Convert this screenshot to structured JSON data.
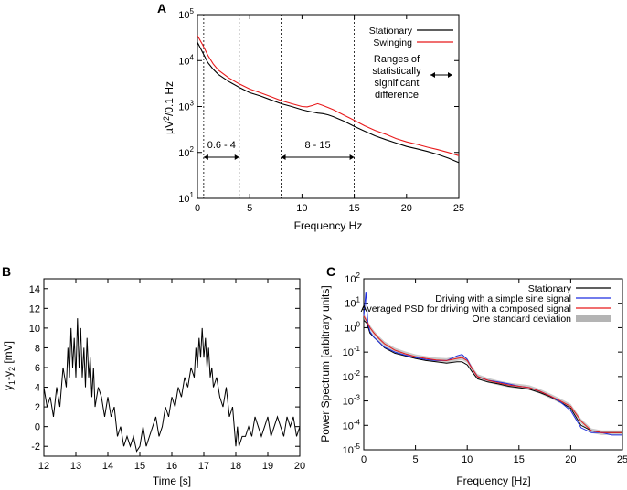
{
  "chart_data": [
    {
      "panel": "A",
      "type": "line",
      "xlabel": "Frequency Hz",
      "ylabel": "µV²/0.1 Hz",
      "xlim": [
        0,
        25
      ],
      "ylim": [
        10,
        100000
      ],
      "yscale": "log",
      "xticks": [
        "0",
        "5",
        "10",
        "15",
        "20",
        "25"
      ],
      "yticks": [
        {
          "base": "10",
          "exp": "1"
        },
        {
          "base": "10",
          "exp": "2"
        },
        {
          "base": "10",
          "exp": "3"
        },
        {
          "base": "10",
          "exp": "4"
        },
        {
          "base": "10",
          "exp": "5"
        }
      ],
      "series": [
        {
          "name": "Stationary",
          "color": "#000000",
          "x": [
            0,
            0.5,
            1,
            1.5,
            2,
            3,
            4,
            5,
            6,
            7,
            8,
            9,
            10,
            10.5,
            11,
            11.5,
            12,
            12.5,
            13,
            14,
            15,
            16,
            17,
            18,
            19,
            20,
            21,
            22,
            23,
            24,
            25
          ],
          "y": [
            25000,
            15000,
            9000,
            6500,
            5000,
            3500,
            2600,
            2000,
            1700,
            1400,
            1150,
            1000,
            850,
            800,
            760,
            720,
            700,
            660,
            600,
            480,
            370,
            290,
            230,
            190,
            160,
            135,
            120,
            105,
            90,
            75,
            60
          ]
        },
        {
          "name": "Swinging",
          "color": "#e8191b",
          "x": [
            0,
            0.5,
            1,
            1.5,
            2,
            3,
            4,
            5,
            6,
            7,
            8,
            9,
            10,
            10.5,
            11,
            11.5,
            12,
            12.5,
            13,
            14,
            15,
            16,
            17,
            18,
            19,
            20,
            21,
            22,
            23,
            24,
            25
          ],
          "y": [
            35000,
            22000,
            13000,
            8500,
            6200,
            4200,
            3100,
            2400,
            2000,
            1650,
            1350,
            1150,
            1000,
            980,
            1050,
            1150,
            1050,
            950,
            850,
            650,
            500,
            380,
            300,
            250,
            200,
            170,
            150,
            130,
            115,
            100,
            85
          ]
        }
      ],
      "vlines": [
        0.6,
        4,
        8,
        15
      ],
      "ranges": [
        {
          "from": 0.6,
          "to": 4,
          "label": "0.6 - 4"
        },
        {
          "from": 8,
          "to": 15,
          "label": "8 - 15"
        }
      ],
      "annotation": [
        "Ranges of",
        "statistically",
        "significant",
        "difference"
      ]
    },
    {
      "panel": "B",
      "type": "line",
      "xlabel": "Time [s]",
      "ylabel": "y1-y2 [mV]",
      "ylabel_parts": [
        "y",
        "1",
        "-y",
        "2",
        " [mV]"
      ],
      "xlim": [
        12,
        20
      ],
      "ylim": [
        -3,
        15
      ],
      "xticks": [
        "12",
        "13",
        "14",
        "15",
        "16",
        "17",
        "18",
        "19",
        "20"
      ],
      "yticks": [
        "-2",
        "0",
        "2",
        "4",
        "6",
        "8",
        "10",
        "12",
        "14"
      ],
      "series": [
        {
          "name": "y1-y2",
          "color": "#000000",
          "x": [
            12,
            12.1,
            12.2,
            12.3,
            12.4,
            12.5,
            12.6,
            12.7,
            12.75,
            12.8,
            12.85,
            12.9,
            12.95,
            13,
            13.05,
            13.1,
            13.15,
            13.2,
            13.25,
            13.3,
            13.35,
            13.4,
            13.45,
            13.5,
            13.55,
            13.6,
            13.7,
            13.8,
            13.9,
            14,
            14.1,
            14.2,
            14.3,
            14.4,
            14.5,
            14.6,
            14.7,
            14.8,
            14.9,
            15,
            15.1,
            15.2,
            15.3,
            15.4,
            15.5,
            15.6,
            15.7,
            15.8,
            15.9,
            16,
            16.1,
            16.2,
            16.3,
            16.4,
            16.5,
            16.6,
            16.7,
            16.75,
            16.8,
            16.85,
            16.9,
            16.95,
            17,
            17.05,
            17.1,
            17.15,
            17.2,
            17.25,
            17.3,
            17.4,
            17.5,
            17.6,
            17.7,
            17.8,
            17.9,
            18,
            18.05,
            18.1,
            18.2,
            18.3,
            18.4,
            18.5,
            18.6,
            18.7,
            18.8,
            18.9,
            19,
            19.1,
            19.2,
            19.3,
            19.4,
            19.5,
            19.6,
            19.7,
            19.8,
            19.9,
            20
          ],
          "y": [
            4,
            2,
            3,
            1,
            4,
            2,
            6,
            4,
            8,
            5,
            10,
            6,
            9,
            5,
            11,
            6,
            10,
            5,
            8,
            4,
            9,
            5,
            7,
            3,
            6,
            2,
            4,
            3,
            1,
            3,
            1,
            2,
            -1,
            0,
            -2,
            -1,
            -2,
            -1,
            -2.5,
            -2,
            0,
            -2,
            -1,
            0,
            1,
            -1,
            0,
            2,
            1,
            3,
            2,
            4,
            3,
            5,
            4,
            6,
            5,
            8,
            6,
            9,
            7,
            10,
            7,
            9,
            6,
            8,
            5,
            6,
            4,
            5,
            3,
            2,
            4,
            1,
            2,
            -2,
            0,
            -2,
            -1,
            -1,
            0,
            -1,
            1,
            0,
            -1,
            0,
            1,
            -1,
            0,
            1,
            0,
            -1,
            1,
            0,
            1,
            -1,
            0
          ]
        }
      ]
    },
    {
      "panel": "C",
      "type": "line",
      "xlabel": "Frequency [Hz]",
      "ylabel": "Power Spectrum [arbitrary units]",
      "xlim": [
        0,
        25
      ],
      "ylim": [
        1e-05,
        100
      ],
      "yscale": "log",
      "xticks": [
        "0",
        "5",
        "10",
        "15",
        "20",
        "25"
      ],
      "yticks": [
        {
          "base": "10",
          "exp": "-5"
        },
        {
          "base": "10",
          "exp": "-4"
        },
        {
          "base": "10",
          "exp": "-3"
        },
        {
          "base": "10",
          "exp": "-2"
        },
        {
          "base": "10",
          "exp": "-1"
        },
        {
          "base": "10",
          "exp": "0"
        },
        {
          "base": "10",
          "exp": "1"
        },
        {
          "base": "10",
          "exp": "2"
        }
      ],
      "series": [
        {
          "name": "Stationary",
          "color": "#000000",
          "x": [
            0,
            0.3,
            0.6,
            1,
            1.5,
            2,
            3,
            4,
            5,
            6,
            7,
            8,
            9,
            9.5,
            10,
            10.5,
            11,
            12,
            13,
            14,
            15,
            16,
            17,
            18,
            19,
            20,
            21,
            22,
            23,
            24,
            25
          ],
          "y": [
            2,
            1.5,
            0.6,
            0.4,
            0.25,
            0.15,
            0.09,
            0.07,
            0.055,
            0.045,
            0.04,
            0.035,
            0.04,
            0.04,
            0.03,
            0.015,
            0.008,
            0.006,
            0.005,
            0.004,
            0.0035,
            0.003,
            0.0022,
            0.0015,
            0.0009,
            0.0005,
            0.0001,
            6e-05,
            5e-05,
            5e-05,
            5e-05
          ]
        },
        {
          "name": "Driving with a simple sine signal",
          "color": "#1f2fe0",
          "x": [
            0,
            0.2,
            0.4,
            0.6,
            1,
            1.5,
            2,
            3,
            4,
            5,
            6,
            7,
            8,
            9,
            9.5,
            10,
            10.5,
            11,
            12,
            13,
            14,
            15,
            16,
            17,
            18,
            19,
            20,
            21,
            22,
            23,
            24,
            25
          ],
          "y": [
            3,
            30,
            1.5,
            0.7,
            0.4,
            0.25,
            0.16,
            0.1,
            0.075,
            0.06,
            0.05,
            0.045,
            0.045,
            0.07,
            0.08,
            0.05,
            0.02,
            0.01,
            0.007,
            0.006,
            0.005,
            0.004,
            0.0035,
            0.0025,
            0.0016,
            0.0009,
            0.0004,
            8e-05,
            5e-05,
            5e-05,
            4e-05,
            4e-05
          ]
        },
        {
          "name": "Averaged PSD for driving with a composed signal",
          "color": "#e8191b",
          "x": [
            0,
            0.3,
            0.6,
            1,
            1.5,
            2,
            3,
            4,
            5,
            6,
            7,
            8,
            9,
            9.5,
            10,
            10.5,
            11,
            12,
            13,
            14,
            15,
            16,
            17,
            18,
            19,
            20,
            21,
            22,
            23,
            24,
            25
          ],
          "y": [
            3,
            1.8,
            1,
            0.6,
            0.35,
            0.22,
            0.12,
            0.085,
            0.065,
            0.055,
            0.048,
            0.045,
            0.055,
            0.06,
            0.045,
            0.02,
            0.01,
            0.007,
            0.0055,
            0.0045,
            0.004,
            0.0035,
            0.0025,
            0.0016,
            0.001,
            0.0006,
            0.00015,
            6e-05,
            5e-05,
            5e-05,
            5e-05
          ]
        }
      ],
      "band": {
        "name": "One standard deviation",
        "color": "#b4b4b4"
      }
    }
  ]
}
